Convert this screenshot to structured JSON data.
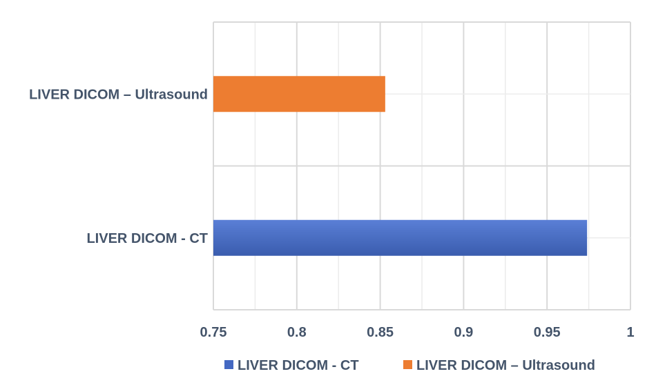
{
  "chart_data": {
    "type": "bar",
    "orientation": "horizontal",
    "title": "",
    "xlabel": "",
    "ylabel": "",
    "categories": [
      "LIVER DICOM - CT",
      "LIVER DICOM – Ultrasound"
    ],
    "series": [
      {
        "name": "LIVER DICOM - CT",
        "values": [
          0.974,
          null
        ],
        "color": "#4468c2"
      },
      {
        "name": "LIVER DICOM – Ultrasound",
        "values": [
          null,
          0.853
        ],
        "color": "#ed7d31"
      }
    ],
    "xlim": [
      0.75,
      1
    ],
    "x_ticks": [
      "0.75",
      "0.8",
      "0.85",
      "0.9",
      "0.95",
      "1"
    ],
    "grid": true,
    "legend_position": "bottom"
  }
}
